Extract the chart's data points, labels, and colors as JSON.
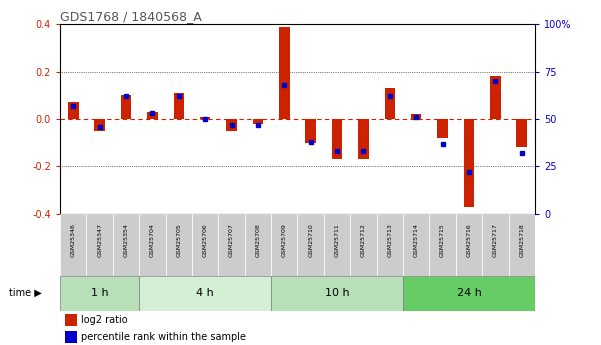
{
  "title": "GDS1768 / 1840568_A",
  "samples": [
    "GSM25346",
    "GSM25347",
    "GSM25354",
    "GSM25704",
    "GSM25705",
    "GSM25706",
    "GSM25707",
    "GSM25708",
    "GSM25709",
    "GSM25710",
    "GSM25711",
    "GSM25712",
    "GSM25713",
    "GSM25714",
    "GSM25715",
    "GSM25716",
    "GSM25717",
    "GSM25718"
  ],
  "log2_ratio": [
    0.07,
    -0.05,
    0.1,
    0.03,
    0.11,
    0.01,
    -0.05,
    -0.02,
    0.39,
    -0.1,
    -0.17,
    -0.17,
    0.13,
    0.02,
    -0.08,
    -0.37,
    0.18,
    -0.12
  ],
  "percentile_rank": [
    57,
    46,
    62,
    53,
    62,
    50,
    47,
    47,
    68,
    38,
    33,
    33,
    62,
    51,
    37,
    22,
    70,
    32
  ],
  "time_groups": [
    {
      "label": "1 h",
      "start": 0,
      "end": 3,
      "color": "#b8e0b8"
    },
    {
      "label": "4 h",
      "start": 3,
      "end": 8,
      "color": "#d4efd4"
    },
    {
      "label": "10 h",
      "start": 8,
      "end": 13,
      "color": "#b8e0b8"
    },
    {
      "label": "24 h",
      "start": 13,
      "end": 18,
      "color": "#66cc66"
    }
  ],
  "ylim": [
    -0.4,
    0.4
  ],
  "yticks_left": [
    -0.4,
    -0.2,
    0.0,
    0.2,
    0.4
  ],
  "yticks_right": [
    0,
    25,
    50,
    75,
    100
  ],
  "bar_color": "#cc2200",
  "dot_color": "#0000cc",
  "zero_line_color": "#cc2200",
  "grid_color": "#000000",
  "title_color": "#555555",
  "left_tick_color": "#cc2200",
  "right_tick_color": "#0000cc",
  "sample_band_color": "#cccccc",
  "legend_bar_label": "log2 ratio",
  "legend_dot_label": "percentile rank within the sample"
}
